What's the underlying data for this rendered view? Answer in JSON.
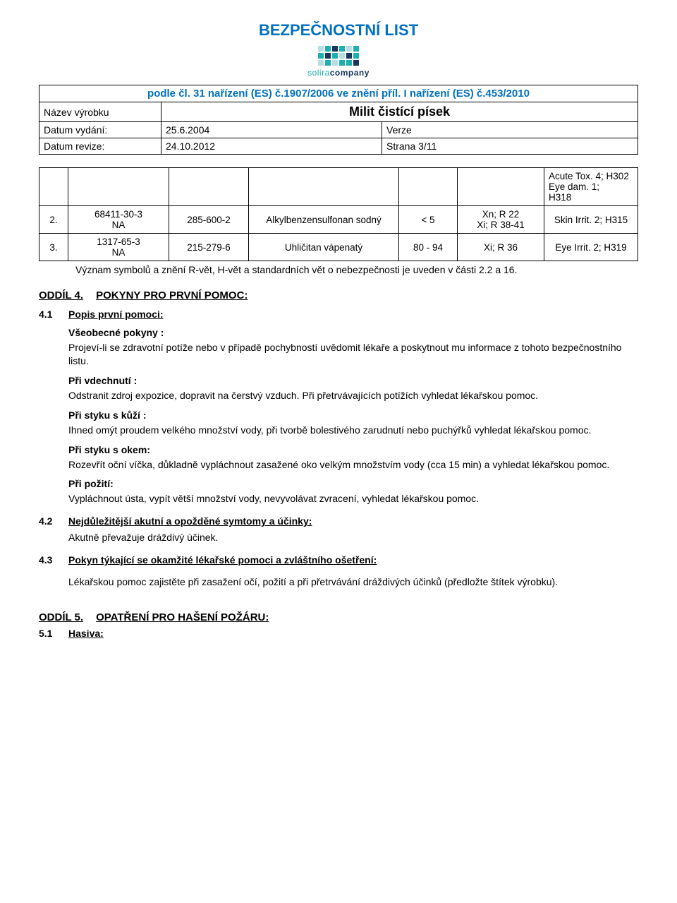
{
  "banner_title": "BEZPEČNOSTNÍ LIST",
  "logo": {
    "text_teal": "solira",
    "text_navy": "company",
    "colors": [
      [
        "#b7dde2",
        "#1cb0b0",
        "#16365c",
        "#1cb0b0",
        "#b7dde2",
        "#1cb0b0"
      ],
      [
        "#1cb0b0",
        "#16365c",
        "#1cb0b0",
        "#b7dde2",
        "#16365c",
        "#1cb0b0"
      ],
      [
        "#b7dde2",
        "#1cb0b0",
        "#b7dde2",
        "#1cb0b0",
        "#1cb0b0",
        "#16365c"
      ]
    ]
  },
  "header": {
    "regulation_line": "podle čl. 31 nařízení (ES) č.1907/2006 ve znění příl. I nařízení (ES) č.453/2010",
    "product_label": "Název výrobku",
    "product_name": "Milit čistící písek",
    "issue_label": "Datum vydání:",
    "issue_date": "25.6.2004",
    "version_label": "Verze",
    "revision_label": "Datum revize:",
    "revision_date": "24.10.2012",
    "page_label": "Strana 3/11"
  },
  "top_row_hazards": "Acute Tox. 4; H302\nEye dam. 1;\nH318",
  "table": {
    "rows": [
      {
        "idx": "2.",
        "ident": "68411-30-3\nNA",
        "ec": "285-600-2",
        "name": "Alkylbenzensulfonan sodný",
        "conc": "< 5",
        "class": "Xn; R 22\nXi; R 38-41",
        "hazard": "Skin Irrit. 2; H315"
      },
      {
        "idx": "3.",
        "ident": "1317-65-3\nNA",
        "ec": "215-279-6",
        "name": "Uhličitan vápenatý",
        "conc": "80 - 94",
        "class": "Xi; R 36",
        "hazard": "Eye Irrit. 2; H319"
      }
    ]
  },
  "footnote": "Význam symbolů a znění R-vět, H-vět a standardních vět o nebezpečnosti je uveden v části 2.2 a 16.",
  "section4": {
    "num": "ODDÍL 4.",
    "title": "POKYNY PRO PRVNÍ POMOC:",
    "c41_num": "4.1",
    "c41_title": "Popis první pomoci:",
    "general_head": "Všeobecné pokyny :",
    "general_text": "Projeví-li se zdravotní potíže nebo v případě pochybností uvědomit lékaře a poskytnout mu informace z tohoto bezpečnostního listu.",
    "inhale_head": "Při vdechnutí :",
    "inhale_text": "Odstranit zdroj expozice,  dopravit na čerstvý vzduch.  Při přetrvávajících potížích vyhledat lékařskou pomoc.",
    "skin_head": "Při styku s kůží :",
    "skin_text": "Ihned omýt proudem velkého množství vody, při tvorbě bolestivého zarudnutí nebo puchýřků vyhledat lékařskou pomoc.",
    "eye_head": "Při styku s okem:",
    "eye_text": "Rozevřít oční víčka, důkladně vypláchnout zasažené oko velkým množstvím vody (cca 15 min) a vyhledat lékařskou pomoc.",
    "ingest_head": "Při požití:",
    "ingest_text": "Vypláchnout ústa, vypít větší množství vody, nevyvolávat zvracení, vyhledat lékařskou pomoc.",
    "c42_num": "4.2",
    "c42_title": "Nejdůležitější akutní a opožděné symtomy a účinky:",
    "c42_text": "Akutně převažuje dráždivý účinek.",
    "c43_num": "4.3",
    "c43_title": "Pokyn týkající se okamžité lékařské pomoci a zvláštního ošetření:",
    "c43_text": "Lékařskou pomoc zajistěte při zasažení očí, požití a při přetrvávání dráždivých účinků (předložte štítek výrobku)."
  },
  "section5": {
    "num": "ODDÍL 5.",
    "title": "OPATŘENÍ PRO HAŠENÍ POŽÁRU:",
    "c51_num": "5.1",
    "c51_title": "Hasiva:"
  }
}
